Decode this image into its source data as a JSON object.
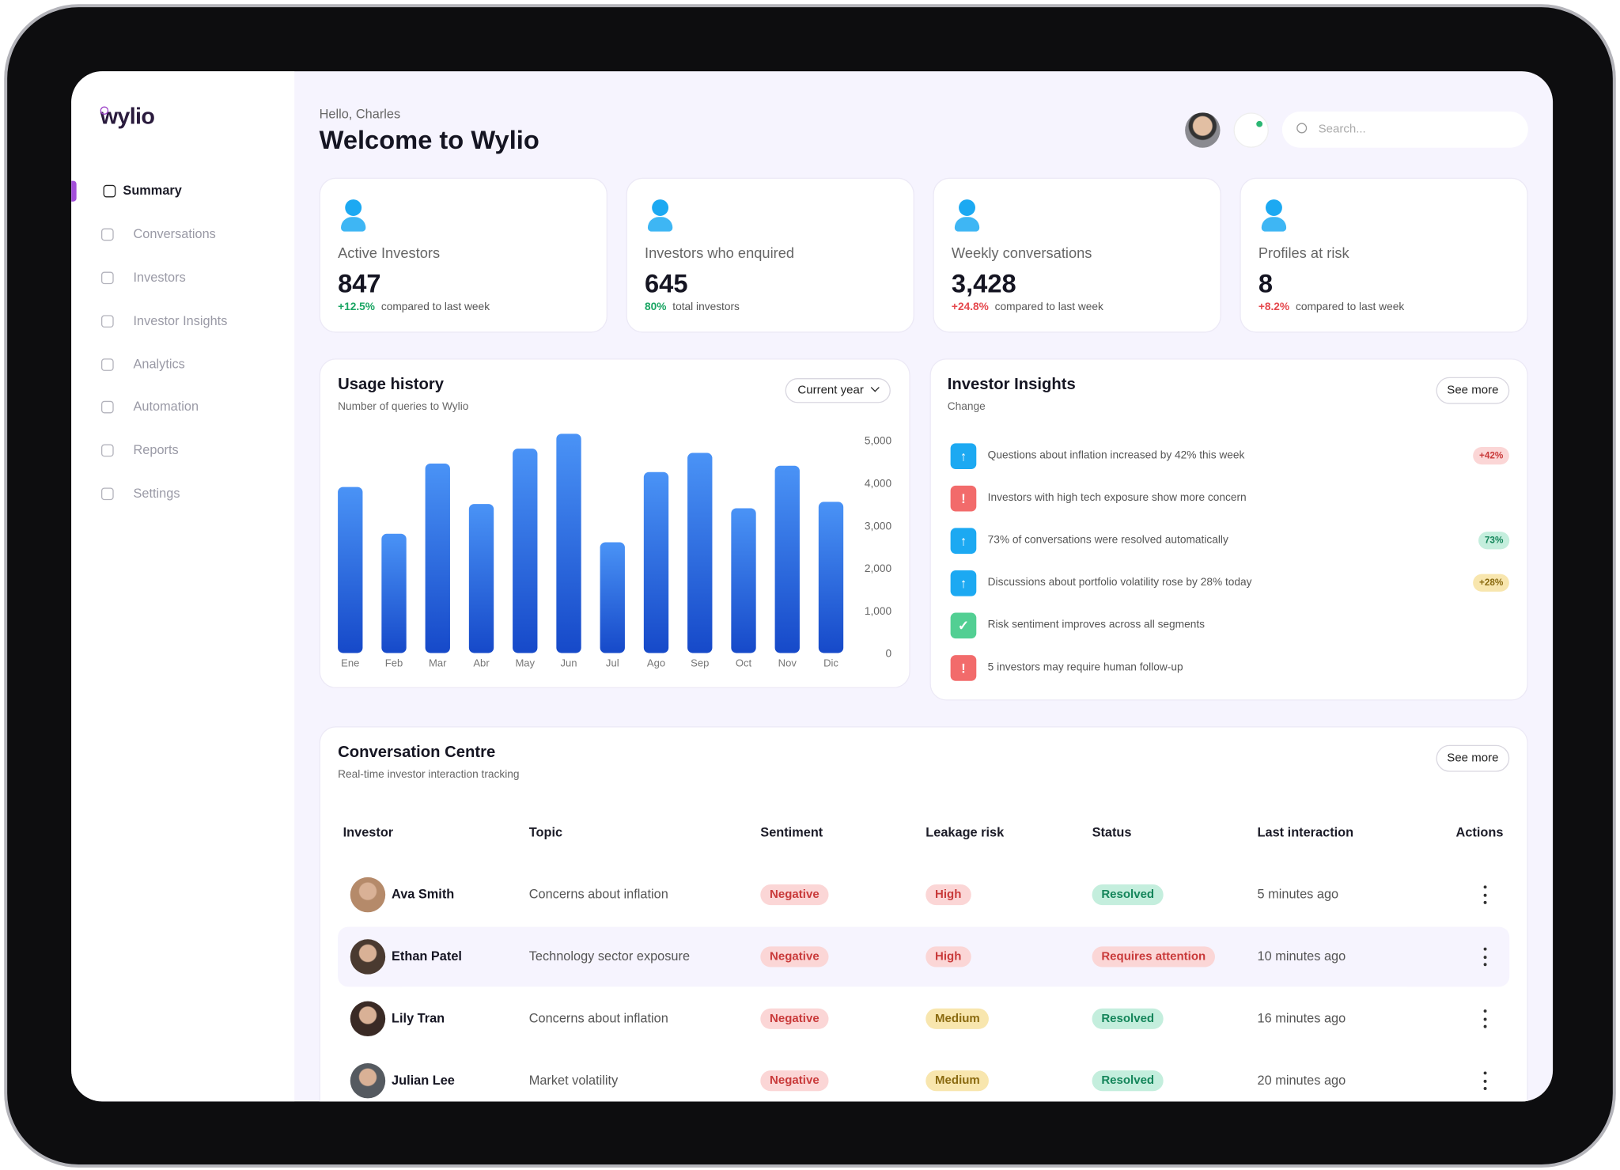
{
  "brand": "wylio",
  "nav": [
    "Summary",
    "Conversations",
    "Investors",
    "Investor Insights",
    "Analytics",
    "Automation",
    "Reports",
    "Settings"
  ],
  "header": {
    "greeting": "Hello, Charles",
    "title": "Welcome to Wylio",
    "search_placeholder": "Search..."
  },
  "stats": [
    {
      "label": "Active Investors",
      "value": "847",
      "change": "+12.5%",
      "note": "compared to last week",
      "color": "#1aa563"
    },
    {
      "label": "Investors who enquired",
      "value": "645",
      "change": "80%",
      "note": "total investors",
      "color": "#1aa563"
    },
    {
      "label": "Weekly conversations",
      "value": "3,428",
      "change": "+24.8%",
      "note": "compared to last week",
      "color": "#e5484d"
    },
    {
      "label": "Profiles at risk",
      "value": "8",
      "change": "+8.2%",
      "note": "compared to last week",
      "color": "#e5484d"
    }
  ],
  "chart_data": {
    "type": "bar",
    "title": "Usage history",
    "subtitle": "Number of queries to Wylio",
    "filter": "Current year",
    "categories": [
      "Ene",
      "Feb",
      "Mar",
      "Abr",
      "May",
      "Jun",
      "Jul",
      "Ago",
      "Sep",
      "Oct",
      "Nov",
      "Dic"
    ],
    "values": [
      3900,
      2800,
      4450,
      3500,
      4800,
      5150,
      2600,
      4250,
      4700,
      3400,
      4400,
      3550
    ],
    "color": "#2f6fe8",
    "ylim": [
      0,
      5000
    ],
    "yticks": [
      {
        "value": 5000,
        "label": "5,000"
      },
      {
        "value": 4000,
        "label": "4,000"
      },
      {
        "value": 3000,
        "label": "3,000"
      },
      {
        "value": 2000,
        "label": "2,000"
      },
      {
        "value": 1000,
        "label": "1,000"
      },
      0
    ],
    "grid": false
  },
  "insights": {
    "title": "Investor Insights",
    "subtitle": "Change",
    "button": "See more",
    "items": [
      {
        "text": "Questions about inflation increased by 42% this week",
        "badge": "+42%",
        "tone": "red"
      },
      {
        "text": "Investors with high tech exposure show more concern"
      },
      {
        "text": "73% of conversations were resolved automatically",
        "badge": "73%",
        "tone": "green"
      },
      {
        "text": "Discussions about portfolio volatility rose by 28% today",
        "badge": "+28%",
        "tone": "yellow"
      },
      {
        "text": "Risk sentiment improves across all segments"
      },
      {
        "text": "5 investors may require human follow-up"
      }
    ]
  },
  "conversations": {
    "title": "Conversation Centre",
    "subtitle": "Real-time investor interaction tracking",
    "button": "See more",
    "columns": [
      "Investor",
      "Topic",
      "Sentiment",
      "Leakage risk",
      "Status",
      "Last interaction",
      "Actions"
    ],
    "rows": [
      {
        "investor": "Ava Smith",
        "topic": "Concerns about inflation",
        "sentiment": {
          "text": "Negative",
          "tone": "red"
        },
        "risk": {
          "text": "High",
          "tone": "red"
        },
        "status": {
          "text": "Resolved",
          "tone": "green"
        },
        "time": "5 minutes ago"
      },
      {
        "investor": "Ethan Patel",
        "topic": "Technology sector exposure",
        "sentiment": {
          "text": "Negative",
          "tone": "red"
        },
        "risk": {
          "text": "High",
          "tone": "red"
        },
        "status": {
          "text": "Requires attention",
          "tone": "red"
        },
        "time": "10 minutes ago"
      },
      {
        "investor": "Lily Tran",
        "topic": "Concerns about inflation",
        "sentiment": {
          "text": "Negative",
          "tone": "red"
        },
        "risk": {
          "text": "Medium",
          "tone": "yellow"
        },
        "status": {
          "text": "Resolved",
          "tone": "green"
        },
        "time": "16 minutes ago"
      },
      {
        "investor": "Julian Lee",
        "topic": "Market volatility",
        "sentiment": {
          "text": "Negative",
          "tone": "red"
        },
        "risk": {
          "text": "Medium",
          "tone": "yellow"
        },
        "status": {
          "text": "Resolved",
          "tone": "green"
        },
        "time": "20 minutes ago"
      }
    ]
  }
}
